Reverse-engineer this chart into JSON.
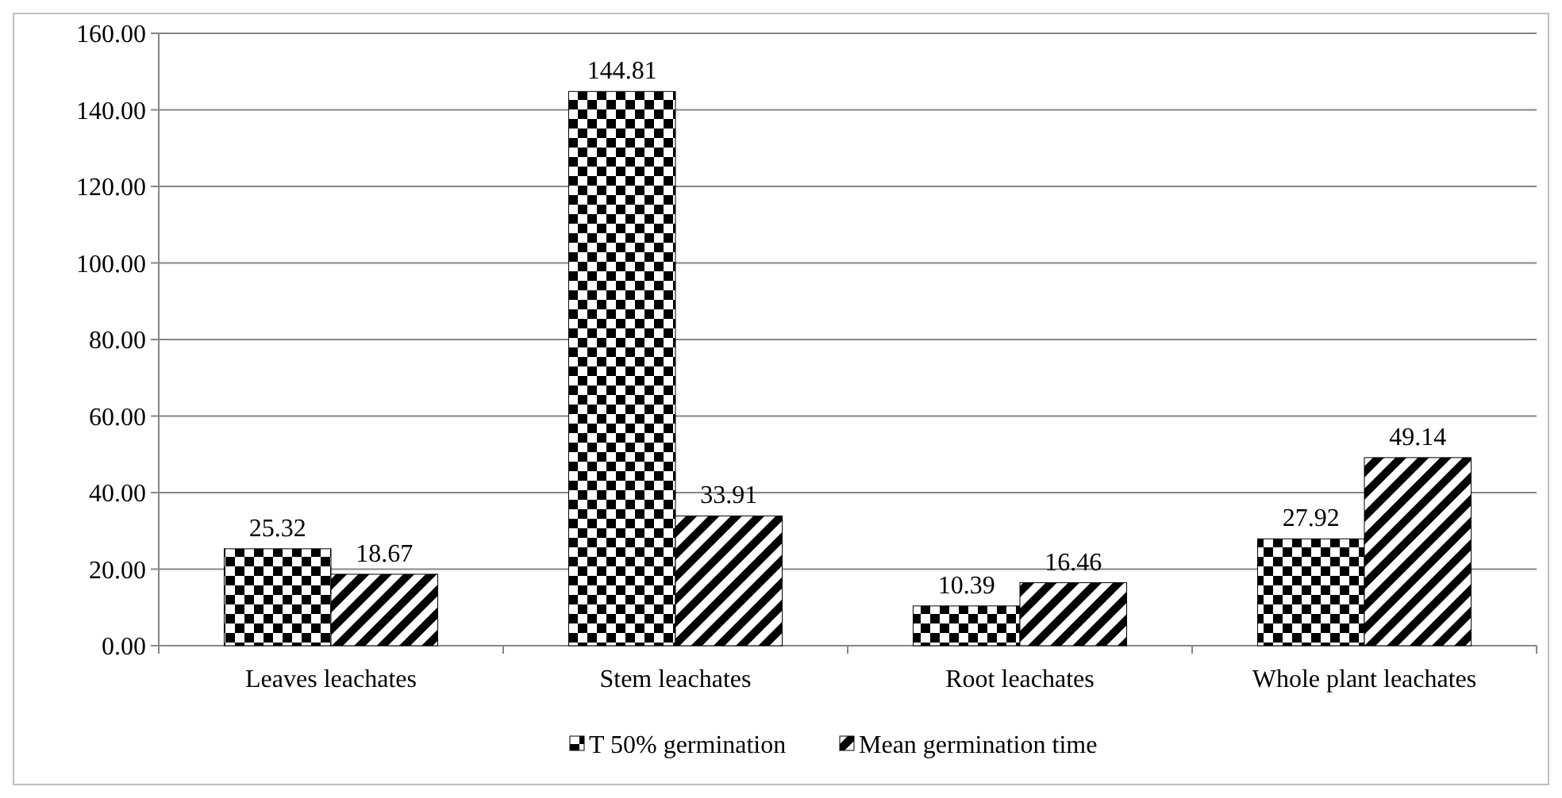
{
  "chart_data": {
    "type": "bar",
    "categories": [
      "Leaves leachates",
      "Stem leachates",
      "Root leachates",
      "Whole plant leachates"
    ],
    "series": [
      {
        "name": "T 50% germination",
        "color": "#000000",
        "values": [
          25.32,
          144.81,
          10.39,
          27.92
        ]
      },
      {
        "name": "Mean germination time",
        "color": "#000000",
        "values": [
          18.67,
          33.91,
          16.46,
          49.14
        ]
      }
    ],
    "ylim": [
      0,
      160
    ],
    "yticks": [
      {
        "value": 0,
        "label": "0.00"
      },
      {
        "value": 20,
        "label": "20.00"
      },
      {
        "value": 40,
        "label": "40.00"
      },
      {
        "value": 60,
        "label": "60.00"
      },
      {
        "value": 80,
        "label": "80.00"
      },
      {
        "value": 100,
        "label": "100.00"
      },
      {
        "value": 120,
        "label": "120.00"
      },
      {
        "value": 140,
        "label": "140.00"
      },
      {
        "value": 160,
        "label": "160.00"
      }
    ],
    "grid": "y",
    "legend": "bottom",
    "data_labels": true
  }
}
